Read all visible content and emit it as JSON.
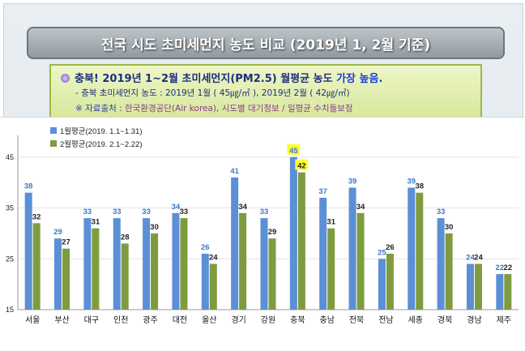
{
  "header": {
    "title": "전국 시도 초미세먼지 농도 비교 (2019년 1, 2월 기준)"
  },
  "info": {
    "line1_region": "충북!",
    "line1_text": " 2019년 1~2월 초미세먼지(PM2.5) 월평균 농도 ",
    "line1_highlight": "가장 높음.",
    "line2": "- 충북 초미세먼지 농도 : 2019년 1월 ( 45㎍/㎥ ), 2019년  2월 ( 42㎍/㎥)",
    "line3_prefix": "※ 자료출처 : ",
    "line3_source": "한국환경공단(Air korea), 시도별 대기정보 / 일평균 수치들보정"
  },
  "chart_data": {
    "type": "bar",
    "categories": [
      "서울",
      "부산",
      "대구",
      "인천",
      "광주",
      "대전",
      "울산",
      "경기",
      "강원",
      "충북",
      "충남",
      "전북",
      "전남",
      "세종",
      "경북",
      "경남",
      "제주"
    ],
    "series": [
      {
        "name": "1월평균(2019. 1.1~1.31)",
        "values": [
          38,
          29,
          33,
          33,
          33,
          34,
          26,
          41,
          33,
          45,
          37,
          39,
          25,
          39,
          33,
          24,
          22
        ]
      },
      {
        "name": "2월평균(2019. 2.1~2.22)",
        "values": [
          32,
          27,
          31,
          28,
          30,
          33,
          24,
          34,
          29,
          42,
          31,
          34,
          26,
          38,
          30,
          24,
          22
        ]
      }
    ],
    "yticks": [
      15,
      25,
      35,
      45
    ],
    "ylim": [
      15,
      48
    ],
    "legend": "top-left",
    "colors": {
      "series1": "#5b8fd6",
      "series2": "#7e9c3f",
      "label1": "#3d78c9",
      "highlight": "#ffff33"
    },
    "highlight_category": "충북"
  }
}
